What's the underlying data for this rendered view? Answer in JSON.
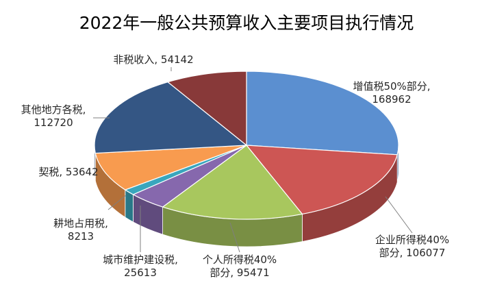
{
  "chart_data": {
    "type": "pie",
    "title": "2022年一般公共预算收入主要项目执行情况",
    "slices": [
      {
        "label_lines": [
          "增值税50%部分,",
          "168962"
        ],
        "value": 168962,
        "color": "#5b8fd0"
      },
      {
        "label_lines": [
          "企业所得税40%",
          "部分, 106077"
        ],
        "value": 106077,
        "color": "#cd5654"
      },
      {
        "label_lines": [
          "个人所得税40%",
          "部分, 95471"
        ],
        "value": 95471,
        "color": "#a8c75e"
      },
      {
        "label_lines": [
          "城市维护建设税,",
          "25613"
        ],
        "value": 25613,
        "color": "#8668ad"
      },
      {
        "label_lines": [
          "耕地占用税,",
          "8213"
        ],
        "value": 8213,
        "color": "#39a6bd"
      },
      {
        "label_lines": [
          "契税, 53642"
        ],
        "value": 53642,
        "color": "#f89b4f"
      },
      {
        "label_lines": [
          "其他地方各税,",
          "112720"
        ],
        "value": 112720,
        "color": "#345684"
      },
      {
        "label_lines": [
          "非税收入, 54142"
        ],
        "value": 54142,
        "color": "#883939"
      }
    ],
    "style": "3d-pie",
    "legend": "none"
  }
}
